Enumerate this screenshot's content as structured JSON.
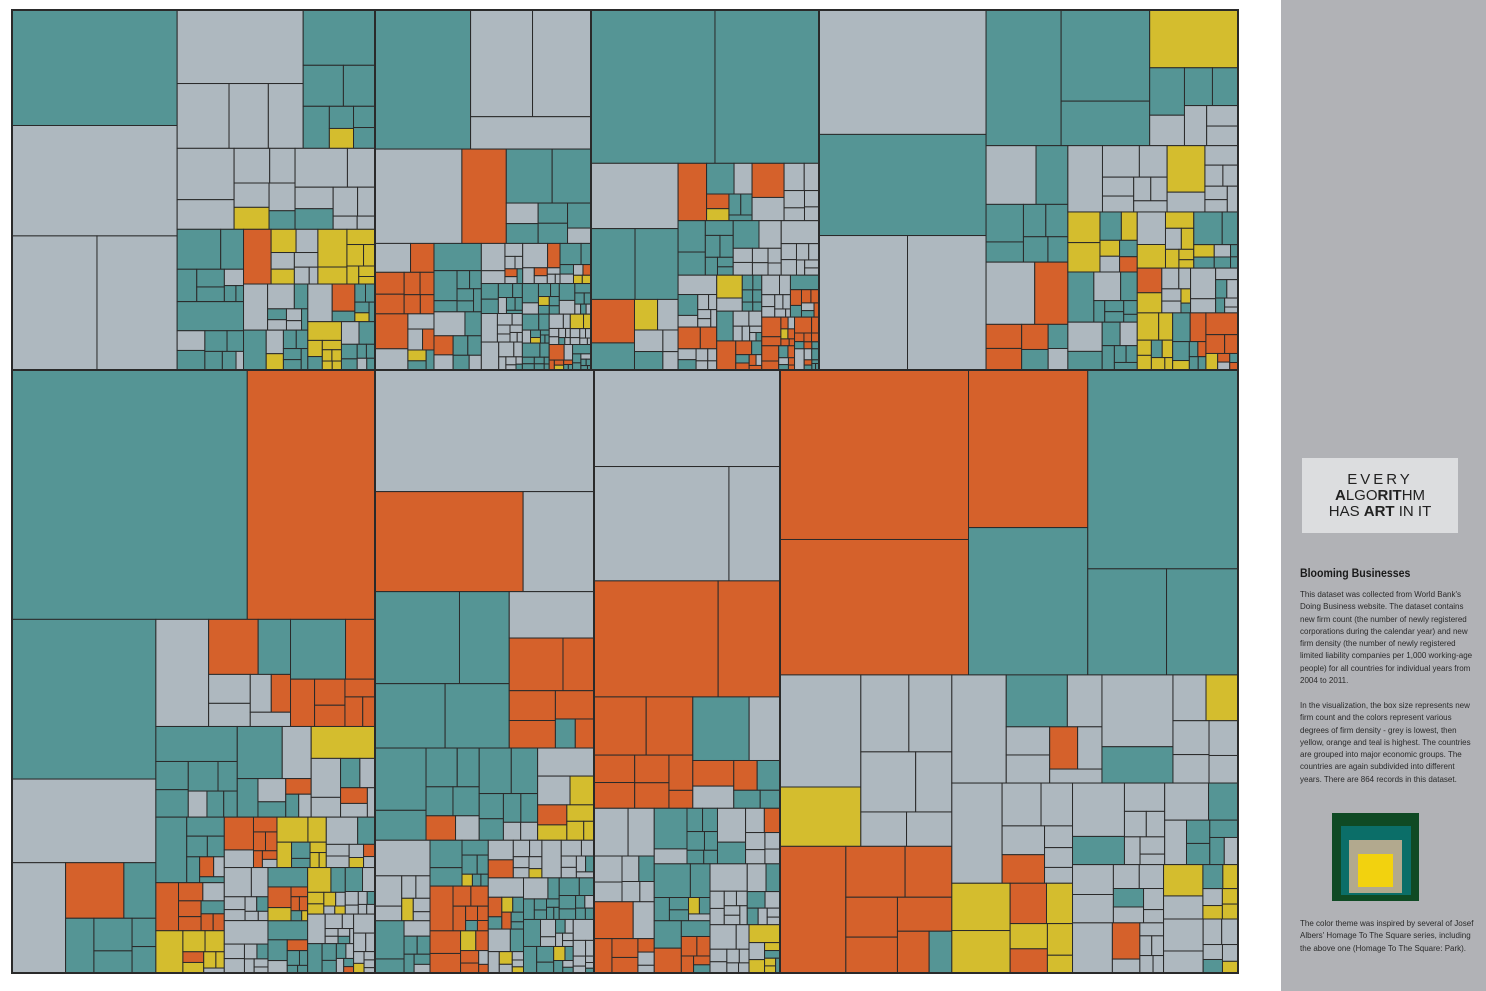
{
  "chart_data": {
    "type": "treemap",
    "title": "Blooming Businesses",
    "size_measure": "new firm count",
    "color_measure": "new firm density",
    "color_scale": [
      {
        "level": "lowest",
        "color": "#aeb8bf"
      },
      {
        "level": "low",
        "color": "#d4bd2e"
      },
      {
        "level": "medium",
        "color": "#d5612b"
      },
      {
        "level": "highest",
        "color": "#559595"
      }
    ],
    "border_color": "#2a2a2a",
    "records": 864
  },
  "logo": {
    "line1": "EVERY",
    "line2_a": "A",
    "line2_b": "LGO",
    "line2_c": "RIT",
    "line2_d": "HM",
    "line3_a": "HAS ",
    "line3_b": "ART",
    "line3_c": " IN IT"
  },
  "sidebar": {
    "title": "Blooming Businesses",
    "paragraph1": "This dataset was collected from World Bank's Doing Business website. The dataset contains new firm count (the number of newly registered corporations during the calendar year) and new firm density (the number of newly registered limited liability companies per 1,000 working-age people) for all countries for individual years from 2004 to 2011.",
    "paragraph2": "In the visualization, the box size represents new firm count and the colors represent various degrees of firm density - grey is lowest, then yellow, orange and teal is highest. The countries are grouped into major economic groups. The countries are again subdivided into different years. There are 864 records in this dataset.",
    "paragraph3": "The color theme was inspired by several of Josef Albers' Homage To The Square series, including the above one (Homage To The Square: Park)."
  }
}
